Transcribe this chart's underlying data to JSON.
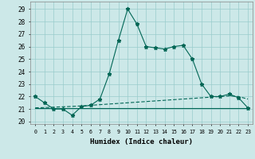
{
  "xlabel": "Humidex (Indice chaleur)",
  "background_color": "#cce8e8",
  "grid_color": "#99cccc",
  "line_color": "#006655",
  "xlim": [
    -0.5,
    23.5
  ],
  "ylim": [
    19.8,
    29.6
  ],
  "yticks": [
    20,
    21,
    22,
    23,
    24,
    25,
    26,
    27,
    28,
    29
  ],
  "xticks": [
    0,
    1,
    2,
    3,
    4,
    5,
    6,
    7,
    8,
    9,
    10,
    11,
    12,
    13,
    14,
    15,
    16,
    17,
    18,
    19,
    20,
    21,
    22,
    23
  ],
  "x": [
    0,
    1,
    2,
    3,
    4,
    5,
    6,
    7,
    8,
    9,
    10,
    11,
    12,
    13,
    14,
    15,
    16,
    17,
    18,
    19,
    20,
    21,
    22,
    23
  ],
  "y_humidex": [
    22.0,
    21.5,
    21.0,
    21.0,
    20.5,
    21.2,
    21.3,
    21.8,
    23.8,
    26.5,
    29.0,
    27.8,
    26.0,
    25.9,
    25.8,
    26.0,
    26.1,
    25.0,
    23.0,
    22.0,
    22.0,
    22.2,
    21.9,
    21.1
  ],
  "y_flat": [
    21.1,
    21.1,
    21.1,
    21.1,
    21.1,
    21.1,
    21.1,
    21.1,
    21.1,
    21.1,
    21.1,
    21.1,
    21.1,
    21.1,
    21.1,
    21.1,
    21.1,
    21.1,
    21.1,
    21.1,
    21.1,
    21.1,
    21.1,
    21.1
  ],
  "y_rising": [
    21.1,
    21.12,
    21.15,
    21.18,
    21.21,
    21.25,
    21.3,
    21.35,
    21.4,
    21.45,
    21.5,
    21.55,
    21.6,
    21.65,
    21.7,
    21.75,
    21.8,
    21.85,
    21.9,
    21.95,
    22.0,
    22.05,
    22.0,
    21.8
  ]
}
